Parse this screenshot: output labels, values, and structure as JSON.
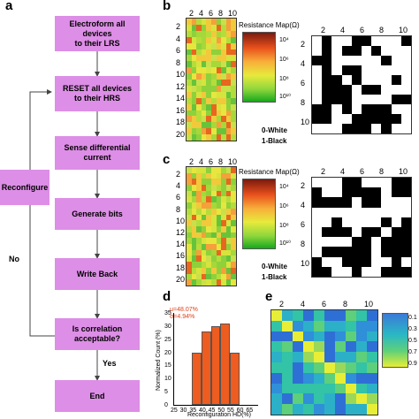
{
  "panels": {
    "a": "a",
    "b": "b",
    "c": "c",
    "d": "d",
    "e": "e"
  },
  "flowchart": {
    "steps": [
      {
        "line1": "Electroform all devices",
        "line2": "to their LRS"
      },
      {
        "line1": "RESET all devices",
        "line2": "to their HRS"
      },
      {
        "line1": "Sense differential",
        "line2": "current"
      },
      {
        "line1": "Generate bits",
        "line2": ""
      },
      {
        "line1": "Write Back",
        "line2": ""
      },
      {
        "line1": "Is correlation",
        "line2": "acceptable?"
      },
      {
        "line1": "End",
        "line2": ""
      }
    ],
    "reconfigure": "Reconfigure",
    "no": "No",
    "yes": "Yes"
  },
  "resistance_map": {
    "title": "Resistance Map(Ω)",
    "ticks": [
      "10⁴",
      "10⁶",
      "10⁸",
      "10¹⁰"
    ],
    "col_ticks": [
      "2",
      "4",
      "6",
      "8",
      "10"
    ],
    "row_ticks": [
      "2",
      "4",
      "6",
      "8",
      "10",
      "12",
      "14",
      "16",
      "18",
      "20"
    ]
  },
  "binary_map": {
    "col_ticks": [
      "2",
      "4",
      "6",
      "8",
      "10"
    ],
    "row_ticks": [
      "2",
      "4",
      "6",
      "8",
      "10"
    ],
    "white_label": "0-White",
    "black_label": "1-Black"
  },
  "histogram": {
    "annotation_mu": "μ=48.07%",
    "annotation_sigma": "σ=4.94%",
    "ylabel": "Normalized Count (%)",
    "xlabel": "Reconfiguration HD(%)",
    "y_ticks": [
      "0",
      "5",
      "10",
      "15",
      "20",
      "25",
      "30",
      "35"
    ],
    "x_ticks": [
      "25",
      "30",
      "35",
      "40",
      "45",
      "50",
      "55",
      "60",
      "65"
    ]
  },
  "chart_data": {
    "type": "bar",
    "categories": [
      "35-40",
      "40-45",
      "45-50",
      "50-55",
      "55-60"
    ],
    "values": [
      20,
      28,
      30,
      31,
      20
    ],
    "xlabel": "Reconfiguration HD(%)",
    "ylabel": "Normalized Count (%)",
    "ylim": [
      0,
      35
    ]
  },
  "correlation": {
    "col_ticks": [
      "2",
      "4",
      "6",
      "8",
      "10"
    ],
    "colorbar_ticks": [
      "0.1",
      "0.3",
      "0.5",
      "0.7",
      "0.9"
    ]
  },
  "colors": {
    "flow_box": "#dd8ee6",
    "bar_fill": "#ee5c1f"
  }
}
